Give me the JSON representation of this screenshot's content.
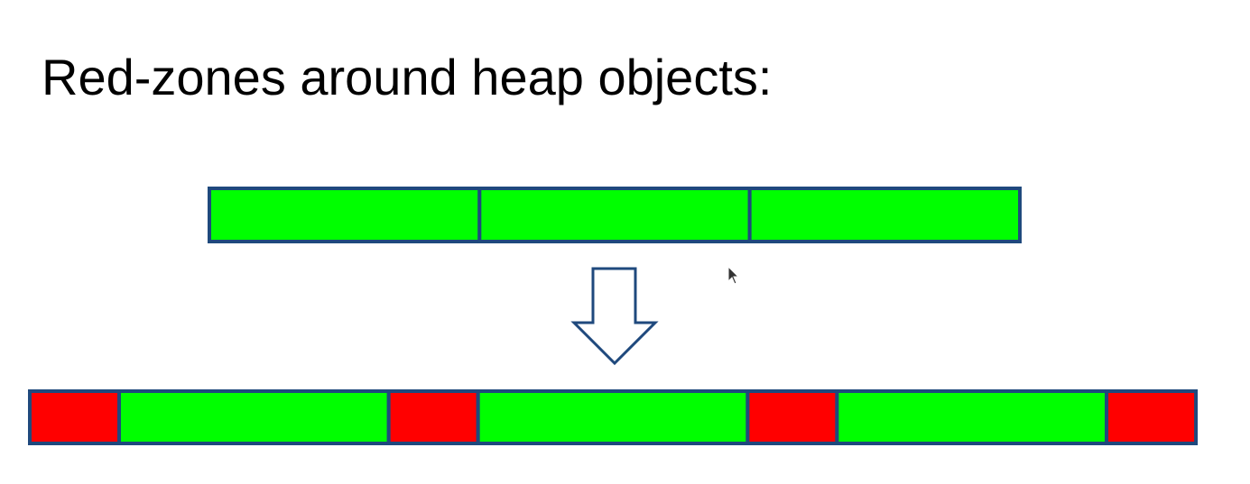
{
  "title": "Red-zones around heap objects:",
  "colors": {
    "object_fill": "#00ff00",
    "redzone_fill": "#ff0000",
    "border": "#1f497d",
    "arrow_fill": "#ffffff",
    "background": "#ffffff"
  },
  "before_row": {
    "segments": [
      "object",
      "object",
      "object"
    ]
  },
  "transform_arrow": {
    "icon": "down-arrow-icon",
    "direction": "down"
  },
  "after_row": {
    "segments": [
      "redzone",
      "object",
      "redzone",
      "object",
      "redzone",
      "object",
      "redzone"
    ]
  },
  "cursor": {
    "icon": "mouse-pointer-icon"
  }
}
